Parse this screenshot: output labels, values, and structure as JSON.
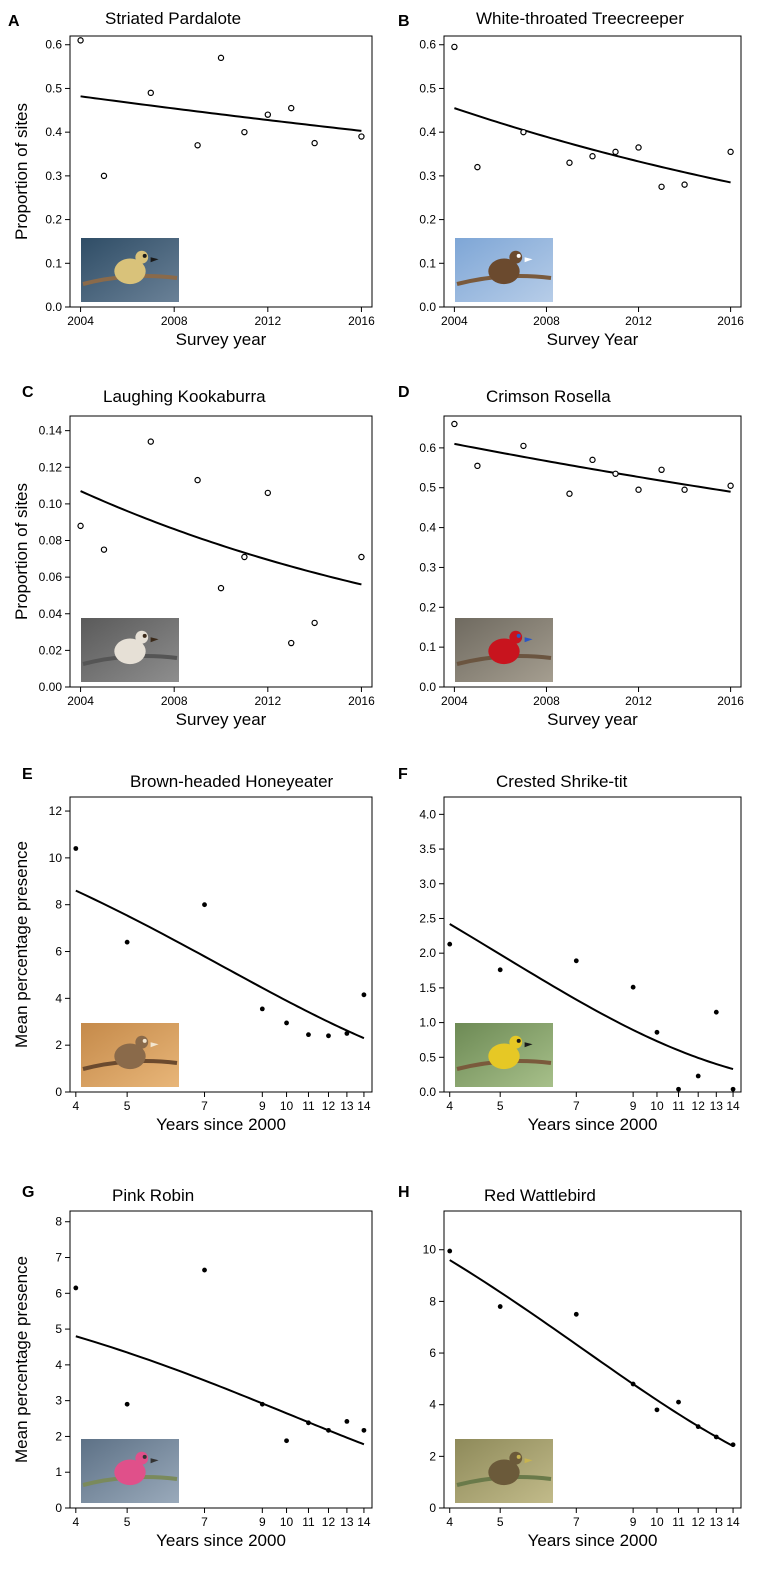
{
  "chart_data": [
    {
      "panel": "A",
      "type": "scatter",
      "title": "Striated Pardalote",
      "xlabel": "Survey year",
      "ylabel": "Proportion of sites",
      "xlim": [
        2004,
        2016
      ],
      "ylim": [
        0,
        0.62
      ],
      "xticks": [
        2004,
        2008,
        2012,
        2016
      ],
      "yticks": [
        0.0,
        0.1,
        0.2,
        0.3,
        0.4,
        0.5,
        0.6
      ],
      "ytick_labels": [
        "0.0",
        "0.1",
        "0.2",
        "0.3",
        "0.4",
        "0.5",
        "0.6"
      ],
      "marker": "open",
      "points": [
        [
          2004,
          0.61
        ],
        [
          2005,
          0.3
        ],
        [
          2007,
          0.49
        ],
        [
          2009,
          0.37
        ],
        [
          2010,
          0.57
        ],
        [
          2011,
          0.4
        ],
        [
          2012,
          0.44
        ],
        [
          2013,
          0.455
        ],
        [
          2014,
          0.375
        ],
        [
          2016,
          0.39
        ]
      ],
      "fit": {
        "from": [
          2004,
          0.482
        ],
        "to": [
          2016,
          0.403
        ]
      },
      "photo": "striated-pardalote-photo"
    },
    {
      "panel": "B",
      "type": "scatter",
      "title": "White-throated Treecreeper",
      "xlabel": "Survey Year",
      "ylabel": "",
      "xlim": [
        2004,
        2016
      ],
      "ylim": [
        0,
        0.62
      ],
      "xticks": [
        2004,
        2008,
        2012,
        2016
      ],
      "yticks": [
        0.0,
        0.1,
        0.2,
        0.3,
        0.4,
        0.5,
        0.6
      ],
      "ytick_labels": [
        "0.0",
        "0.1",
        "0.2",
        "0.3",
        "0.4",
        "0.5",
        "0.6"
      ],
      "marker": "open",
      "points": [
        [
          2004,
          0.595
        ],
        [
          2005,
          0.32
        ],
        [
          2007,
          0.4
        ],
        [
          2009,
          0.33
        ],
        [
          2010,
          0.345
        ],
        [
          2011,
          0.355
        ],
        [
          2012,
          0.365
        ],
        [
          2013,
          0.275
        ],
        [
          2014,
          0.28
        ],
        [
          2016,
          0.355
        ]
      ],
      "fit": {
        "from": [
          2004,
          0.455
        ],
        "to": [
          2016,
          0.285
        ]
      },
      "photo": "white-throated-treecreeper-photo"
    },
    {
      "panel": "C",
      "type": "scatter",
      "title": "Laughing Kookaburra",
      "xlabel": "Survey year",
      "ylabel": "Proportion of sites",
      "xlim": [
        2004,
        2016
      ],
      "ylim": [
        0,
        0.148
      ],
      "xticks": [
        2004,
        2008,
        2012,
        2016
      ],
      "yticks": [
        0.0,
        0.02,
        0.04,
        0.06,
        0.08,
        0.1,
        0.12,
        0.14
      ],
      "ytick_labels": [
        "0.00",
        "0.02",
        "0.04",
        "0.06",
        "0.08",
        "0.10",
        "0.12",
        "0.14"
      ],
      "marker": "open",
      "points": [
        [
          2004,
          0.088
        ],
        [
          2005,
          0.075
        ],
        [
          2007,
          0.134
        ],
        [
          2009,
          0.113
        ],
        [
          2010,
          0.054
        ],
        [
          2011,
          0.071
        ],
        [
          2012,
          0.106
        ],
        [
          2013,
          0.024
        ],
        [
          2014,
          0.035
        ],
        [
          2016,
          0.071
        ]
      ],
      "fit": {
        "from": [
          2004,
          0.107
        ],
        "to": [
          2016,
          0.056
        ]
      },
      "photo": "laughing-kookaburra-photo"
    },
    {
      "panel": "D",
      "type": "scatter",
      "title": "Crimson Rosella",
      "xlabel": "Survey year",
      "ylabel": "",
      "xlim": [
        2004,
        2016
      ],
      "ylim": [
        0,
        0.68
      ],
      "xticks": [
        2004,
        2008,
        2012,
        2016
      ],
      "yticks": [
        0.0,
        0.1,
        0.2,
        0.3,
        0.4,
        0.5,
        0.6
      ],
      "ytick_labels": [
        "0.0",
        "0.1",
        "0.2",
        "0.3",
        "0.4",
        "0.5",
        "0.6"
      ],
      "marker": "open",
      "points": [
        [
          2004,
          0.66
        ],
        [
          2005,
          0.555
        ],
        [
          2007,
          0.605
        ],
        [
          2009,
          0.485
        ],
        [
          2010,
          0.57
        ],
        [
          2011,
          0.535
        ],
        [
          2012,
          0.495
        ],
        [
          2013,
          0.545
        ],
        [
          2014,
          0.495
        ],
        [
          2016,
          0.505
        ]
      ],
      "fit": {
        "from": [
          2004,
          0.61
        ],
        "to": [
          2016,
          0.49
        ]
      },
      "photo": "crimson-rosella-photo"
    },
    {
      "panel": "E",
      "type": "scatter",
      "title": "Brown-headed Honeyeater",
      "xlabel": "Years since 2000",
      "ylabel": "Mean percentage presence",
      "xscale": "log",
      "xlim": [
        3.9,
        14.5
      ],
      "ylim": [
        0,
        12.6
      ],
      "xticks": [
        4,
        5,
        7,
        9,
        10,
        11,
        12,
        13,
        14
      ],
      "yticks": [
        0,
        2,
        4,
        6,
        8,
        10,
        12
      ],
      "ytick_labels": [
        "0",
        "2",
        "4",
        "6",
        "8",
        "10",
        "12"
      ],
      "marker": "filled",
      "points": [
        [
          4,
          10.4
        ],
        [
          5,
          6.4
        ],
        [
          7,
          8.0
        ],
        [
          9,
          3.55
        ],
        [
          10,
          2.95
        ],
        [
          11,
          2.45
        ],
        [
          12,
          2.4
        ],
        [
          13,
          2.5
        ],
        [
          14,
          4.15
        ]
      ],
      "fit": {
        "from": [
          4,
          8.6
        ],
        "to": [
          14,
          2.3
        ]
      },
      "photo": "brown-headed-honeyeater-photo"
    },
    {
      "panel": "F",
      "type": "scatter",
      "title": "Crested Shrike-tit",
      "xlabel": "Years since 2000",
      "ylabel": "",
      "xscale": "log",
      "xlim": [
        3.9,
        14.5
      ],
      "ylim": [
        0,
        4.25
      ],
      "xticks": [
        4,
        5,
        7,
        9,
        10,
        11,
        12,
        13,
        14
      ],
      "yticks": [
        0.0,
        0.5,
        1.0,
        1.5,
        2.0,
        2.5,
        3.0,
        3.5,
        4.0
      ],
      "ytick_labels": [
        "0.0",
        "0.5",
        "1.0",
        "1.5",
        "2.0",
        "2.5",
        "3.0",
        "3.5",
        "4.0"
      ],
      "marker": "filled",
      "points": [
        [
          4,
          2.13
        ],
        [
          5,
          1.76
        ],
        [
          7,
          1.89
        ],
        [
          9,
          1.51
        ],
        [
          10,
          0.86
        ],
        [
          11,
          0.04
        ],
        [
          12,
          0.23
        ],
        [
          13,
          1.15
        ],
        [
          14,
          0.04
        ]
      ],
      "fit": {
        "from": [
          4,
          2.42
        ],
        "to": [
          14,
          0.33
        ]
      },
      "photo": "crested-shrike-tit-photo"
    },
    {
      "panel": "G",
      "type": "scatter",
      "title": "Pink Robin",
      "xlabel": "Years since 2000",
      "ylabel": "Mean percentage presence",
      "xscale": "log",
      "xlim": [
        3.9,
        14.5
      ],
      "ylim": [
        0,
        8.3
      ],
      "xticks": [
        4,
        5,
        7,
        9,
        10,
        11,
        12,
        13,
        14
      ],
      "yticks": [
        0,
        1,
        2,
        3,
        4,
        5,
        6,
        7,
        8
      ],
      "ytick_labels": [
        "0",
        "1",
        "2",
        "3",
        "4",
        "5",
        "6",
        "7",
        "8"
      ],
      "marker": "filled",
      "points": [
        [
          4,
          6.15
        ],
        [
          5,
          2.9
        ],
        [
          7,
          6.65
        ],
        [
          9,
          2.9
        ],
        [
          10,
          1.88
        ],
        [
          11,
          2.38
        ],
        [
          12,
          2.17
        ],
        [
          13,
          2.42
        ],
        [
          14,
          2.17
        ]
      ],
      "fit": {
        "from": [
          4,
          4.8
        ],
        "to": [
          14,
          1.78
        ]
      },
      "photo": "pink-robin-photo"
    },
    {
      "panel": "H",
      "type": "scatter",
      "title": "Red Wattlebird",
      "xlabel": "Years since 2000",
      "ylabel": "",
      "xscale": "log",
      "xlim": [
        3.9,
        14.5
      ],
      "ylim": [
        0,
        11.5
      ],
      "xticks": [
        4,
        5,
        7,
        9,
        10,
        11,
        12,
        13,
        14
      ],
      "yticks": [
        0,
        2,
        4,
        6,
        8,
        10
      ],
      "ytick_labels": [
        "0",
        "2",
        "4",
        "6",
        "8",
        "10"
      ],
      "marker": "filled",
      "points": [
        [
          4,
          9.95
        ],
        [
          5,
          7.8
        ],
        [
          7,
          7.5
        ],
        [
          9,
          4.8
        ],
        [
          10,
          3.8
        ],
        [
          11,
          4.1
        ],
        [
          12,
          3.15
        ],
        [
          13,
          2.75
        ],
        [
          14,
          2.45
        ]
      ],
      "fit": {
        "from": [
          4,
          9.6
        ],
        "to": [
          14,
          2.4
        ]
      },
      "photo": "red-wattlebird-photo"
    }
  ]
}
